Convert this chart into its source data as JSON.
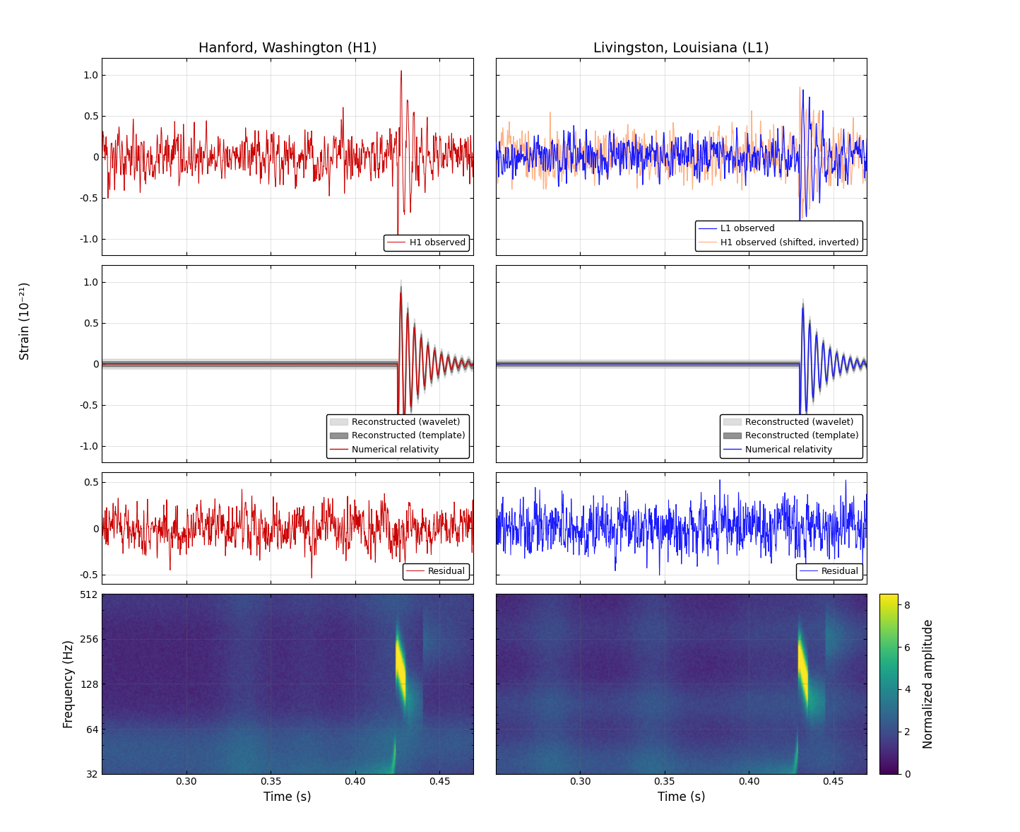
{
  "title_left": "Hanford, Washington (H1)",
  "title_right": "Livingston, Louisiana (L1)",
  "strain_ylabel": "Strain (10⁻²¹)",
  "freq_ylabel": "Frequency (Hz)",
  "xlabel": "Time (s)",
  "colorbar_label": "Normalized amplitude",
  "time_xlim": [
    0.25,
    0.47
  ],
  "time_xticks": [
    0.3,
    0.35,
    0.4,
    0.45
  ],
  "row1_ylim": [
    -1.2,
    1.2
  ],
  "row1_yticks": [
    -1.0,
    -0.5,
    0.0,
    0.5,
    1.0
  ],
  "row2_ylim": [
    -1.2,
    1.2
  ],
  "row2_yticks": [
    -1.0,
    -0.5,
    0.0,
    0.5,
    1.0
  ],
  "row3_ylim": [
    -0.6,
    0.6
  ],
  "row3_yticks": [
    -0.5,
    0.0,
    0.5
  ],
  "freq_yticks": [
    32,
    64,
    128,
    256,
    512
  ],
  "freq_ylim_log": [
    32,
    512
  ],
  "colorbar_vmin": 0,
  "colorbar_vmax": 8.5,
  "colorbar_ticks": [
    0,
    2,
    4,
    6,
    8
  ],
  "color_h1": "#cc0000",
  "color_l1": "#1a1aff",
  "color_h1_shifted": "#ffaa77",
  "color_wavelet": "#c8c8c8",
  "color_template": "#666666",
  "background_color": "#ffffff",
  "grid_color": "#cccccc",
  "legend_fontsize": 9,
  "tick_fontsize": 10,
  "label_fontsize": 12,
  "title_fontsize": 14
}
